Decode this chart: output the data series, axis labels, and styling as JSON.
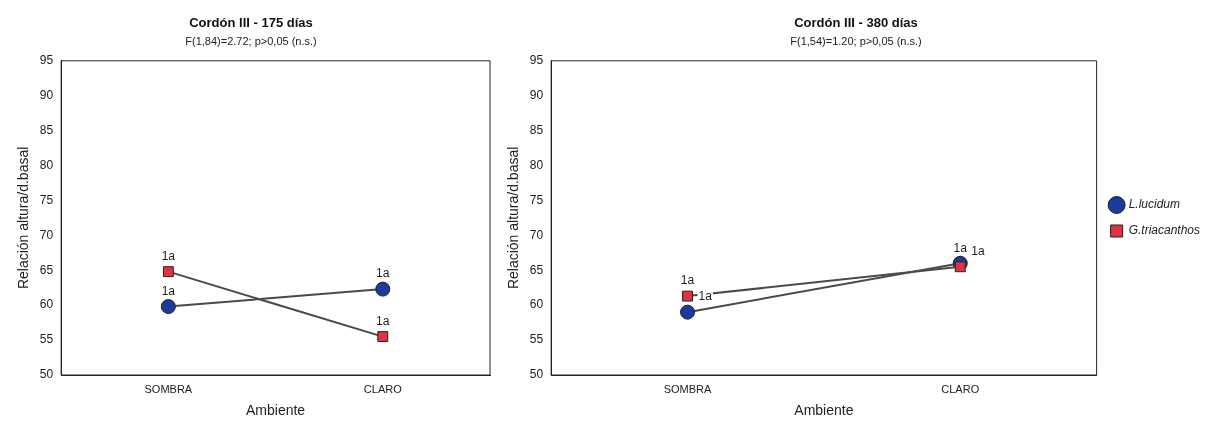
{
  "chart_data": [
    {
      "type": "line",
      "title": "Cordón III - 175 días",
      "subtitle": "F(1,84)=2.72; p>0,05 (n.s.)",
      "xlabel": "Ambiente",
      "ylabel": "Relación altura/d.basal",
      "categories": [
        "SOMBRA",
        "CLARO"
      ],
      "series": [
        {
          "color": "#1c3a9e",
          "marker": "circle",
          "values": [
            59.8,
            62.3
          ]
        },
        {
          "color": "#e2323f",
          "marker": "square",
          "values": [
            64.8,
            55.5
          ]
        }
      ],
      "ylim": [
        50,
        95
      ],
      "yticks": [
        50,
        55,
        60,
        65,
        70,
        75,
        80,
        85,
        90,
        95
      ],
      "grid": false,
      "legend": false,
      "annotations": [
        {
          "text": "1a",
          "x": "SOMBRA",
          "y": 59.8
        },
        {
          "text": "1a",
          "x": "CLARO",
          "y": 62.3
        },
        {
          "text": "1a",
          "x": "SOMBRA",
          "y": 64.8
        },
        {
          "text": "1a",
          "x": "CLARO",
          "y": 55.5
        }
      ]
    },
    {
      "type": "line",
      "title": "Cordón III - 380 días",
      "subtitle": "F(1,54)=1.20; p>0,05 (n.s.)",
      "xlabel": "Ambiente",
      "ylabel": "Relación altura/d.basal",
      "categories": [
        "SOMBRA",
        "CLARO"
      ],
      "series": [
        {
          "name": "L.lucidum",
          "color": "#1c3a9e",
          "marker": "circle",
          "values": [
            59,
            66
          ]
        },
        {
          "name": "G.triacanthos",
          "color": "#e2323f",
          "marker": "square",
          "values": [
            61.3,
            65.5
          ]
        }
      ],
      "ylim": [
        50,
        95
      ],
      "yticks": [
        50,
        55,
        60,
        65,
        70,
        75,
        80,
        85,
        90,
        95
      ],
      "grid": false,
      "legend": "right",
      "annotations": [
        {
          "text": "1a",
          "x": "SOMBRA",
          "y": 59
        },
        {
          "text": "1a",
          "x": "CLARO",
          "y": 66
        },
        {
          "text": "1a",
          "x": "SOMBRA",
          "y": 61.3
        },
        {
          "text": "1a",
          "x": "CLARO",
          "y": 65.5
        }
      ]
    }
  ]
}
